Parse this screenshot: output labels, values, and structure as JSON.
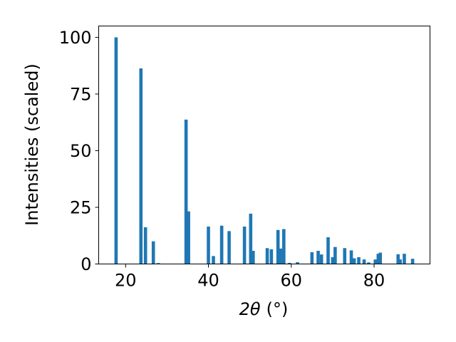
{
  "chart_data": {
    "type": "bar",
    "xlabel_main": "2θ",
    "xlabel_unit": "(°)",
    "ylabel": "Intensities (scaled)",
    "xlim": [
      13.5,
      93.5
    ],
    "ylim": [
      0,
      105
    ],
    "xticks": [
      20,
      40,
      60,
      80
    ],
    "yticks": [
      0,
      25,
      50,
      75,
      100
    ],
    "grid": false,
    "bar_color": "#1f77b4",
    "bars": [
      {
        "x": 17.7,
        "y": 100
      },
      {
        "x": 23.7,
        "y": 86.3
      },
      {
        "x": 24.8,
        "y": 16.2
      },
      {
        "x": 26.7,
        "y": 10
      },
      {
        "x": 27.9,
        "y": 0.4
      },
      {
        "x": 34.6,
        "y": 63.7
      },
      {
        "x": 35.2,
        "y": 23.2
      },
      {
        "x": 40.0,
        "y": 16.5
      },
      {
        "x": 41.2,
        "y": 3.5
      },
      {
        "x": 43.2,
        "y": 16.9
      },
      {
        "x": 45.0,
        "y": 14.5
      },
      {
        "x": 48.7,
        "y": 16.5
      },
      {
        "x": 50.2,
        "y": 22.2
      },
      {
        "x": 50.8,
        "y": 5.8
      },
      {
        "x": 54.2,
        "y": 7
      },
      {
        "x": 55.2,
        "y": 6.5
      },
      {
        "x": 56.8,
        "y": 15
      },
      {
        "x": 57.4,
        "y": 6.8
      },
      {
        "x": 58.2,
        "y": 15.4
      },
      {
        "x": 59.6,
        "y": 0.5
      },
      {
        "x": 61.5,
        "y": 0.8
      },
      {
        "x": 65.0,
        "y": 5.2
      },
      {
        "x": 66.5,
        "y": 5.8
      },
      {
        "x": 67.3,
        "y": 4.2
      },
      {
        "x": 68.9,
        "y": 11.8
      },
      {
        "x": 70.0,
        "y": 3
      },
      {
        "x": 70.6,
        "y": 7.5
      },
      {
        "x": 72.9,
        "y": 7
      },
      {
        "x": 74.5,
        "y": 6
      },
      {
        "x": 75.2,
        "y": 2.5
      },
      {
        "x": 76.3,
        "y": 3
      },
      {
        "x": 77.6,
        "y": 2
      },
      {
        "x": 78.7,
        "y": 0.7
      },
      {
        "x": 80.3,
        "y": 2
      },
      {
        "x": 81.0,
        "y": 4.5
      },
      {
        "x": 81.5,
        "y": 5
      },
      {
        "x": 85.8,
        "y": 4.3
      },
      {
        "x": 86.3,
        "y": 2
      },
      {
        "x": 87.3,
        "y": 4.5
      },
      {
        "x": 89.3,
        "y": 2.3
      }
    ]
  }
}
